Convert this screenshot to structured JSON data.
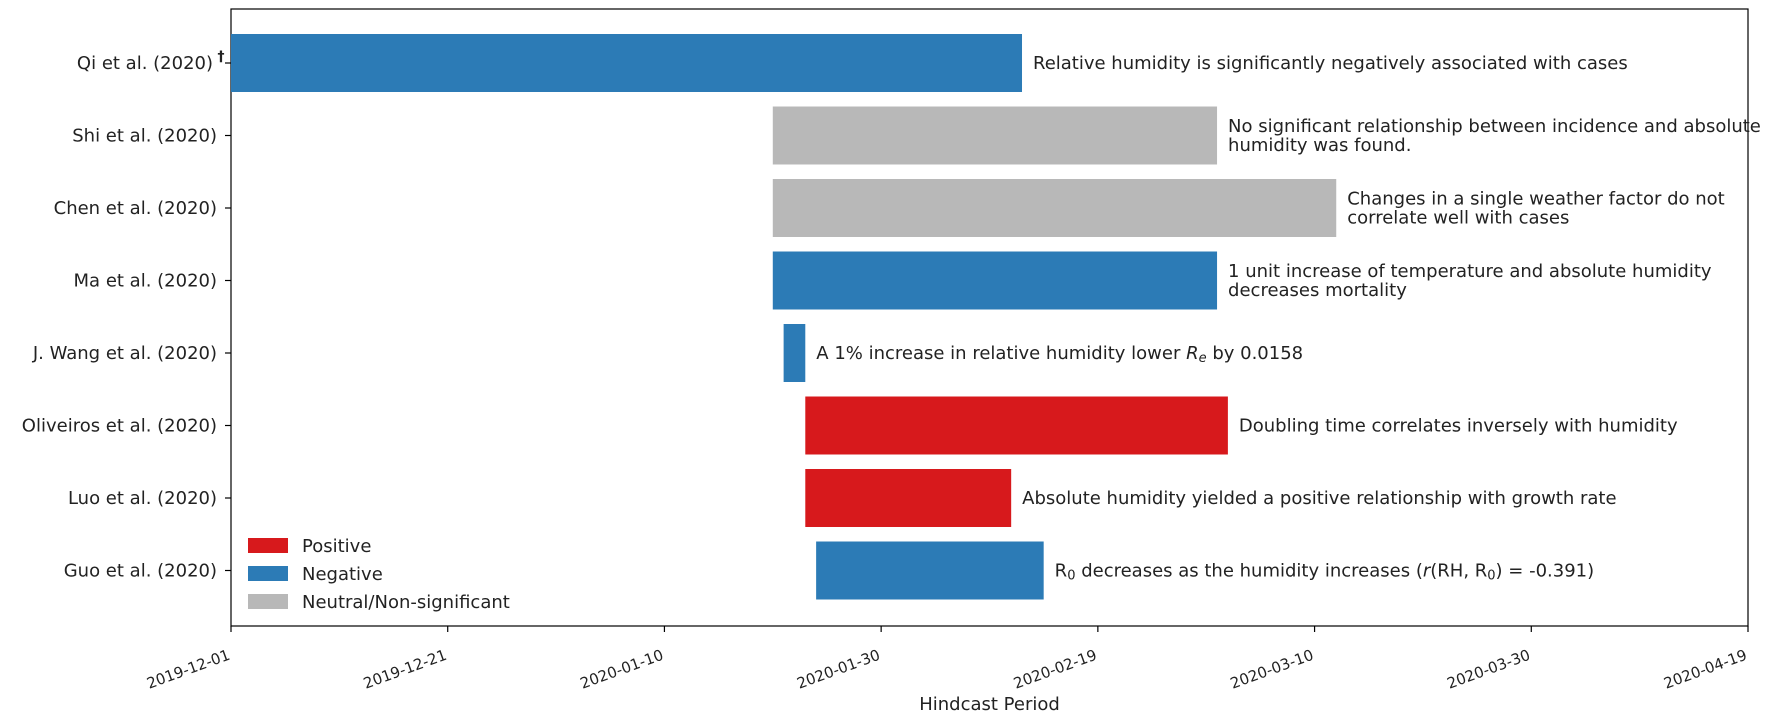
{
  "chart_data": {
    "type": "bar",
    "orientation": "horizontal-timeline",
    "title": "",
    "xlabel": "Hindcast Period",
    "ylabel": "",
    "x_range": [
      "2019-12-01",
      "2020-04-19"
    ],
    "x_ticks": [
      "2019-12-01",
      "2019-12-21",
      "2020-01-10",
      "2020-01-30",
      "2020-02-19",
      "2020-03-10",
      "2020-03-30",
      "2020-04-19"
    ],
    "legend_position": "bottom-left",
    "grid": false,
    "categories_colors": {
      "Positive": "#d7191c",
      "Negative": "#2c7bb6",
      "Neutral/Non-significant": "#b8b8b8"
    },
    "legend": [
      {
        "label": "Positive",
        "category": "Positive"
      },
      {
        "label": "Negative",
        "category": "Negative"
      },
      {
        "label": "Neutral/Non-significant",
        "category": "Neutral/Non-significant"
      }
    ],
    "studies": [
      {
        "label": "Qi et al. (2020)",
        "marker": "†",
        "start": "2019-12-01",
        "end": "2020-02-12",
        "category": "Negative",
        "annotation": [
          [
            {
              "t": "Relative humidity is significantly negatively associated with cases"
            }
          ]
        ]
      },
      {
        "label": "Shi et al. (2020)",
        "marker": "",
        "start": "2020-01-20",
        "end": "2020-03-01",
        "category": "Neutral/Non-significant",
        "annotation": [
          [
            {
              "t": "No significant relationship between incidence and absolute"
            }
          ],
          [
            {
              "t": "humidity was found."
            }
          ]
        ]
      },
      {
        "label": "Chen et al. (2020)",
        "marker": "",
        "start": "2020-01-20",
        "end": "2020-03-12",
        "category": "Neutral/Non-significant",
        "annotation": [
          [
            {
              "t": "Changes in a single weather factor do not"
            }
          ],
          [
            {
              "t": "correlate well with cases"
            }
          ]
        ]
      },
      {
        "label": "Ma et al. (2020)",
        "marker": "",
        "start": "2020-01-20",
        "end": "2020-03-01",
        "category": "Negative",
        "annotation": [
          [
            {
              "t": "1 unit increase of temperature and absolute humidity"
            }
          ],
          [
            {
              "t": "decreases mortality"
            }
          ]
        ]
      },
      {
        "label": "J. Wang et al. (2020)",
        "marker": "",
        "start": "2020-01-21",
        "end": "2020-01-23",
        "category": "Negative",
        "annotation": [
          [
            {
              "t": "A 1% increase in relative humidity lower "
            },
            {
              "t": "R",
              "i": true
            },
            {
              "t": "e",
              "i": true,
              "sub": true
            },
            {
              "t": " by 0.0158"
            }
          ]
        ]
      },
      {
        "label": "Oliveiros et al. (2020)",
        "marker": "",
        "start": "2020-01-23",
        "end": "2020-03-02",
        "category": "Positive",
        "annotation": [
          [
            {
              "t": "Doubling time correlates inversely with humidity"
            }
          ]
        ]
      },
      {
        "label": "Luo et al. (2020)",
        "marker": "",
        "start": "2020-01-23",
        "end": "2020-02-11",
        "category": "Positive",
        "annotation": [
          [
            {
              "t": "Absolute humidity yielded a positive relationship with growth rate"
            }
          ]
        ]
      },
      {
        "label": "Guo et al. (2020)",
        "marker": "",
        "start": "2020-01-24",
        "end": "2020-02-14",
        "category": "Negative",
        "annotation": [
          [
            {
              "t": "R"
            },
            {
              "t": "0",
              "sub": true
            },
            {
              "t": " decreases as the humidity increases ("
            },
            {
              "t": "r",
              "i": true
            },
            {
              "t": "(RH, R"
            },
            {
              "t": "0",
              "sub": true
            },
            {
              "t": ") = -0.391)"
            }
          ]
        ]
      }
    ]
  }
}
